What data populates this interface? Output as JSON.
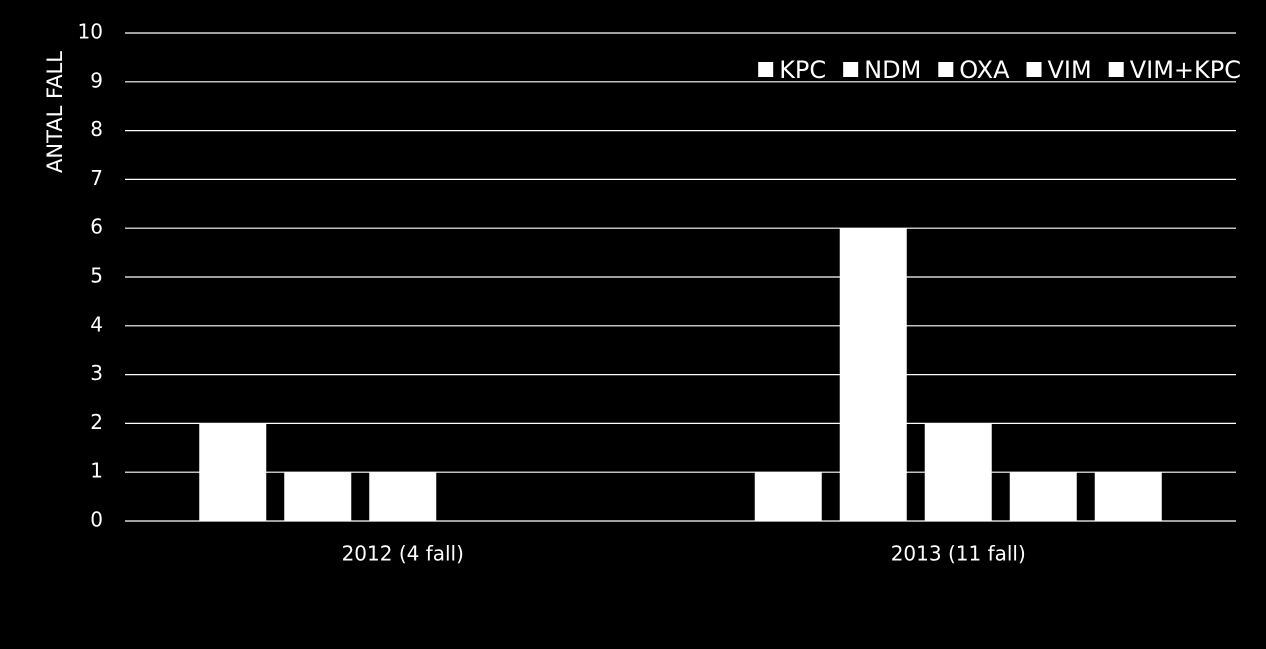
{
  "chart_data": {
    "type": "bar",
    "y_label": "ANTAL FALL",
    "categories": [
      "2012 (4 fall)",
      "2013 (11 fall)"
    ],
    "series": [
      {
        "name": "KPC",
        "color": "#ffffff",
        "values": [
          2,
          1
        ]
      },
      {
        "name": "NDM",
        "color": "#ffffff",
        "values": [
          1,
          6
        ]
      },
      {
        "name": "OXA",
        "color": "#ffffff",
        "values": [
          1,
          2
        ]
      },
      {
        "name": "VIM",
        "color": "#ffffff",
        "values": [
          0,
          1
        ]
      },
      {
        "name": "VIM+KPC",
        "color": "#ffffff",
        "values": [
          0,
          1
        ]
      }
    ],
    "ylim": [
      0,
      10
    ],
    "yticks": [
      0,
      1,
      2,
      3,
      4,
      5,
      6,
      7,
      8,
      9,
      10
    ],
    "grid": true,
    "legend": "top-right"
  }
}
